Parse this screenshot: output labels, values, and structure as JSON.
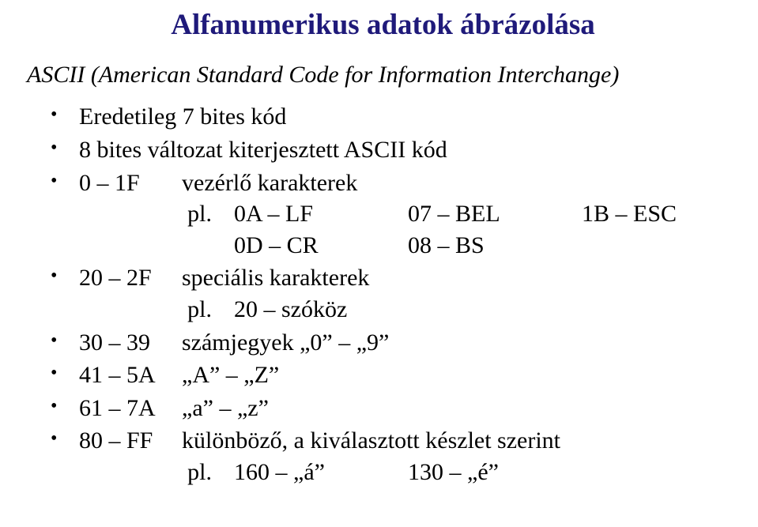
{
  "title": "Alfanumerikus adatok ábrázolása",
  "subtitle": "ASCII (American Standard Code for Information Interchange)",
  "items": {
    "l1": "Eredetileg 7 bites kód",
    "l2": "8 bites változat kiterjesztett ASCII kód",
    "l3": {
      "range": "0 – 1F",
      "text": "vezérlő karakterek"
    },
    "l3ex": {
      "pl": "pl.",
      "r1a": "0A – LF",
      "r1b": "07 – BEL",
      "r1c": "1B – ESC",
      "r2a": "0D – CR",
      "r2b": "08 – BS"
    },
    "l4": {
      "range": "20 – 2F",
      "text": "speciális karakterek"
    },
    "l4ex": {
      "pl": "pl.",
      "a": "20 – szóköz"
    },
    "l5": {
      "range": "30 – 39",
      "text": "számjegyek „0” – „9”"
    },
    "l6": {
      "range": "41 – 5A",
      "text": "„A” – „Z”"
    },
    "l7": {
      "range": "61 – 7A",
      "text": "„a” – „z”"
    },
    "l8": {
      "range": "80 – FF",
      "text": "különböző, a kiválasztott készlet szerint"
    },
    "l8ex": {
      "pl": "pl.",
      "a": "160 – „á”",
      "b": "130 – „é”"
    }
  },
  "colors": {
    "title": "#1f1a7a",
    "text": "#000000",
    "bg": "#ffffff"
  },
  "fonts": {
    "family": "Times New Roman",
    "title_size_pt": 28,
    "body_size_pt": 22
  }
}
